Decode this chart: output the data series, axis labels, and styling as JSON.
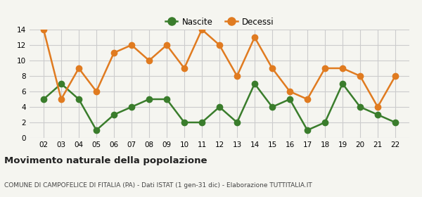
{
  "years": [
    2,
    3,
    4,
    5,
    6,
    7,
    8,
    9,
    10,
    11,
    12,
    13,
    14,
    15,
    16,
    17,
    18,
    19,
    20,
    21,
    22
  ],
  "nascite": [
    5,
    7,
    5,
    1,
    3,
    4,
    5,
    5,
    2,
    2,
    4,
    2,
    7,
    4,
    5,
    1,
    2,
    7,
    4,
    3,
    2
  ],
  "decessi": [
    14,
    5,
    9,
    6,
    11,
    12,
    10,
    12,
    9,
    14,
    12,
    8,
    13,
    9,
    6,
    5,
    9,
    9,
    8,
    4,
    8
  ],
  "nascite_color": "#3a7d2c",
  "decessi_color": "#e07b20",
  "bg_color": "#f5f5f0",
  "grid_color": "#cccccc",
  "title": "Movimento naturale della popolazione",
  "subtitle": "COMUNE DI CAMPOFELICE DI FITALIA (PA) - Dati ISTAT (1 gen-31 dic) - Elaborazione TUTTITALIA.IT",
  "ylim": [
    0,
    14
  ],
  "yticks": [
    0,
    2,
    4,
    6,
    8,
    10,
    12,
    14
  ],
  "legend_nascite": "Nascite",
  "legend_decessi": "Decessi",
  "marker_size": 6,
  "line_width": 1.8
}
